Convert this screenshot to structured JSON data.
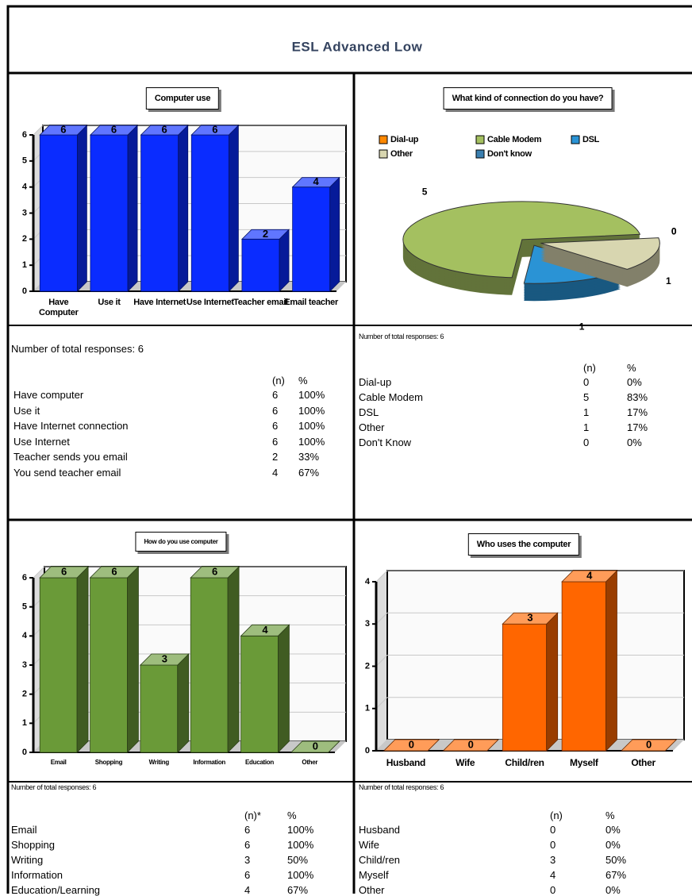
{
  "title": "ESL Advanced Low",
  "chart_data": [
    {
      "type": "bar",
      "title": "Computer use",
      "categories": [
        "Have Computer",
        "Use it",
        "Have Internet",
        "Use Internet",
        "Teacher email",
        "Email teacher"
      ],
      "values": [
        6,
        6,
        6,
        6,
        2,
        4
      ],
      "color": "#0a2cff",
      "ylim": [
        0,
        6
      ],
      "yticks": [
        0,
        1,
        2,
        3,
        4,
        5,
        6
      ]
    },
    {
      "type": "pie",
      "title": "What kind of connection do you have?",
      "categories": [
        "Dial-up",
        "Cable Modem",
        "DSL",
        "Other",
        "Don't know"
      ],
      "values": [
        0,
        5,
        1,
        1,
        0
      ],
      "colors": [
        "#ff8800",
        "#a4c060",
        "#2a93d5",
        "#d8d6b0",
        "#3a7fb0"
      ]
    },
    {
      "type": "bar",
      "title": "How do you use computer",
      "categories": [
        "Email",
        "Shopping",
        "Writing",
        "Information",
        "Education",
        "Other"
      ],
      "values": [
        6,
        6,
        3,
        6,
        4,
        0
      ],
      "color": "#6a9a38",
      "ylim": [
        0,
        6
      ],
      "yticks": [
        0,
        1,
        2,
        3,
        4,
        5,
        6
      ]
    },
    {
      "type": "bar",
      "title": "Who uses the computer",
      "categories": [
        "Husband",
        "Wife",
        "Child/ren",
        "Myself",
        "Other"
      ],
      "values": [
        0,
        0,
        3,
        4,
        0
      ],
      "color": "#ff6600",
      "ylim": [
        0,
        4
      ],
      "yticks": [
        0,
        1,
        2,
        3,
        4
      ]
    }
  ],
  "tables": [
    {
      "note": "Number of total responses: 6",
      "header": [
        "(n)",
        "%"
      ],
      "rows": [
        [
          "Have computer",
          6,
          "100%"
        ],
        [
          "Use it",
          6,
          "100%"
        ],
        [
          "Have Internet connection",
          6,
          "100%"
        ],
        [
          "Use Internet",
          6,
          "100%"
        ],
        [
          "Teacher sends you email",
          2,
          "33%"
        ],
        [
          "You send teacher email",
          4,
          "67%"
        ]
      ]
    },
    {
      "note": "Number of total responses: 6",
      "header": [
        "(n)",
        "%"
      ],
      "rows": [
        [
          "Dial-up",
          0,
          "0%"
        ],
        [
          "Cable Modem",
          5,
          "83%"
        ],
        [
          "DSL",
          1,
          "17%"
        ],
        [
          "Other",
          1,
          "17%"
        ],
        [
          "Don't Know",
          0,
          "0%"
        ]
      ]
    },
    {
      "note": "Number of total responses: 6",
      "header": [
        "(n)*",
        "%"
      ],
      "rows": [
        [
          "Email",
          6,
          "100%"
        ],
        [
          "Shopping",
          6,
          "100%"
        ],
        [
          "Writing",
          3,
          "50%"
        ],
        [
          "Information",
          6,
          "100%"
        ],
        [
          "Education/Learning",
          4,
          "67%"
        ]
      ]
    },
    {
      "note": "Number of total responses: 6",
      "header": [
        "(n)",
        "%"
      ],
      "rows": [
        [
          "Husband",
          0,
          "0%"
        ],
        [
          "Wife",
          0,
          "0%"
        ],
        [
          "Child/ren",
          3,
          "50%"
        ],
        [
          "Myself",
          4,
          "67%"
        ],
        [
          "Other",
          0,
          "0%"
        ]
      ]
    }
  ]
}
